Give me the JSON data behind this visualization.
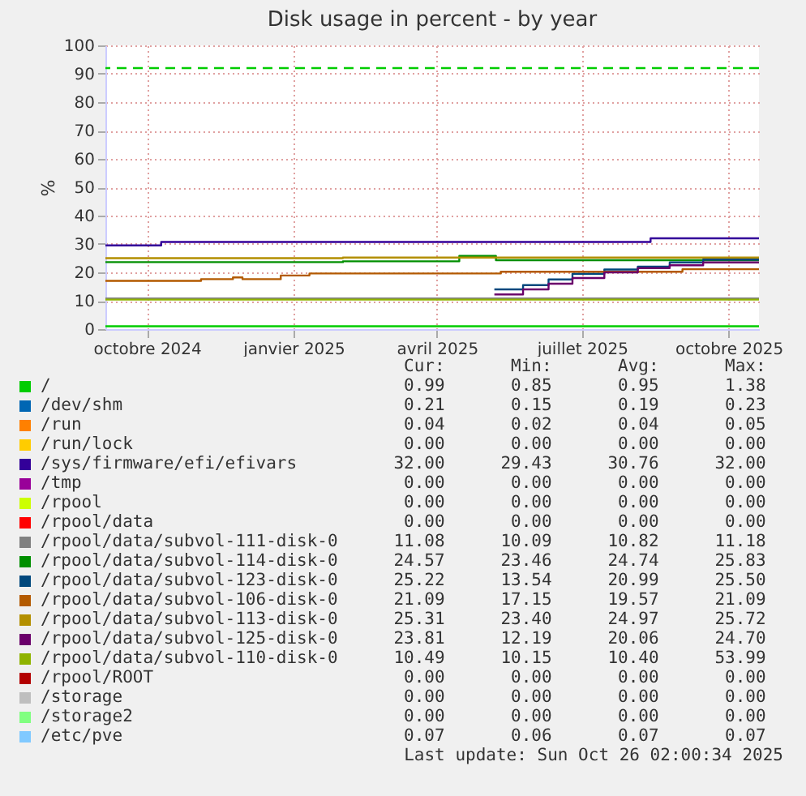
{
  "chart_data": {
    "type": "step",
    "title": "Disk usage in percent - by year",
    "ylabel": "%",
    "xlim": [
      "2024-09-05",
      "2025-10-20"
    ],
    "xticks": [
      {
        "value": "2024-10-01",
        "label": "octobre 2024"
      },
      {
        "value": "2025-01-01",
        "label": "janvier 2025"
      },
      {
        "value": "2025-04-01",
        "label": "avril 2025"
      },
      {
        "value": "2025-07-01",
        "label": "juillet 2025"
      },
      {
        "value": "2025-10-01",
        "label": "octobre 2025"
      }
    ],
    "ylim": [
      0,
      100
    ],
    "yticks": [
      0,
      10,
      20,
      30,
      40,
      50,
      60,
      70,
      80,
      90,
      100
    ],
    "grid": true,
    "legend": "bottom",
    "ref_lines": [
      {
        "axis": "y",
        "value": 92,
        "color": "#00cc00",
        "line_style": "dashed"
      }
    ],
    "series": [
      {
        "name": "/",
        "color": "#00cc00",
        "x": [
          "2024-09-05",
          "2025-10-20"
        ],
        "values": [
          1,
          1
        ]
      },
      {
        "name": "/dev/shm",
        "color": "#0066b3"
      },
      {
        "name": "/run",
        "color": "#ff8000"
      },
      {
        "name": "/run/lock",
        "color": "#ffcc00"
      },
      {
        "name": "/sys/firmware/efi/efivars",
        "color": "#330099",
        "x": [
          "2024-09-05",
          "2024-10-10",
          "2025-08-13",
          "2025-10-20"
        ],
        "values": [
          29.5,
          30.7,
          32,
          32
        ]
      },
      {
        "name": "/tmp",
        "color": "#990099"
      },
      {
        "name": "/rpool",
        "color": "#ccff00"
      },
      {
        "name": "/rpool/data",
        "color": "#ff0000"
      },
      {
        "name": "/rpool/data/subvol-111-disk-0",
        "color": "#808080",
        "x": [
          "2024-09-05",
          "2025-10-20"
        ],
        "values": [
          10.8,
          10.8
        ]
      },
      {
        "name": "/rpool/data/subvol-114-disk-0",
        "color": "#008f00",
        "x": [
          "2024-09-05",
          "2025-02-01",
          "2025-04-15",
          "2025-05-08",
          "2025-10-20"
        ],
        "values": [
          23.6,
          23.9,
          25.8,
          24.3,
          24.3
        ]
      },
      {
        "name": "/rpool/data/subvol-123-disk-0",
        "color": "#00487d",
        "x": [
          "2025-05-07",
          "2025-05-25",
          "2025-06-10",
          "2025-06-25",
          "2025-07-15",
          "2025-08-05",
          "2025-08-25",
          "2025-09-15",
          "2025-10-20"
        ],
        "values": [
          14,
          15.5,
          17.5,
          19.5,
          21,
          22,
          23.5,
          24.5,
          25.2
        ]
      },
      {
        "name": "/rpool/data/subvol-106-disk-0",
        "color": "#b35a00",
        "x": [
          "2024-09-05",
          "2024-11-04",
          "2024-11-24",
          "2024-11-30",
          "2024-12-24",
          "2025-01-11",
          "2025-05-11",
          "2025-09-02",
          "2025-10-20"
        ],
        "values": [
          17,
          17.6,
          18.2,
          17.6,
          18.9,
          19.6,
          20.2,
          21.1,
          21.1
        ]
      },
      {
        "name": "/rpool/data/subvol-113-disk-0",
        "color": "#b38f00",
        "x": [
          "2024-09-05",
          "2025-02-01",
          "2025-10-20"
        ],
        "values": [
          25,
          25.2,
          25.3
        ]
      },
      {
        "name": "/rpool/data/subvol-125-disk-0",
        "color": "#6b006b",
        "x": [
          "2025-05-07",
          "2025-05-25",
          "2025-06-10",
          "2025-06-25",
          "2025-07-15",
          "2025-08-05",
          "2025-08-25",
          "2025-09-15",
          "2025-10-20"
        ],
        "values": [
          12.2,
          14,
          16,
          18,
          20,
          21.5,
          22.5,
          23.5,
          23.8
        ]
      },
      {
        "name": "/rpool/data/subvol-110-disk-0",
        "color": "#8fb300",
        "x": [
          "2024-09-05",
          "2025-10-20"
        ],
        "values": [
          10.4,
          10.4
        ]
      },
      {
        "name": "/rpool/ROOT",
        "color": "#b30000"
      },
      {
        "name": "/storage",
        "color": "#bebebe"
      },
      {
        "name": "/storage2",
        "color": "#80ff80"
      },
      {
        "name": "/etc/pve",
        "color": "#80c9ff"
      }
    ],
    "annotations": [
      "Cur:",
      "Min:",
      "Avg:",
      "Max:",
      "0.99",
      "0.85",
      "0.95",
      "1.38",
      "0.21",
      "0.15",
      "0.19",
      "0.23",
      "0.04",
      "0.02",
      "0.04",
      "0.05",
      "0.00",
      "0.00",
      "0.00",
      "0.00",
      "32.00",
      "29.43",
      "30.76",
      "32.00",
      "0.00",
      "0.00",
      "0.00",
      "0.00",
      "0.00",
      "0.00",
      "0.00",
      "0.00",
      "0.00",
      "0.00",
      "0.00",
      "0.00",
      "11.08",
      "10.09",
      "10.82",
      "11.18",
      "24.57",
      "23.46",
      "24.74",
      "25.83",
      "25.22",
      "13.54",
      "20.99",
      "25.50",
      "21.09",
      "17.15",
      "19.57",
      "21.09",
      "25.31",
      "23.40",
      "24.97",
      "25.72",
      "23.81",
      "12.19",
      "20.06",
      "24.70",
      "10.49",
      "10.15",
      "10.40",
      "53.99",
      "0.00",
      "0.00",
      "0.00",
      "0.00",
      "0.00",
      "0.00",
      "0.00",
      "0.00",
      "0.00",
      "0.00",
      "0.00",
      "0.00",
      "0.07",
      "0.06",
      "0.07",
      "0.07",
      "Last update: Sun Oct 26 02:00:34 2025"
    ]
  }
}
